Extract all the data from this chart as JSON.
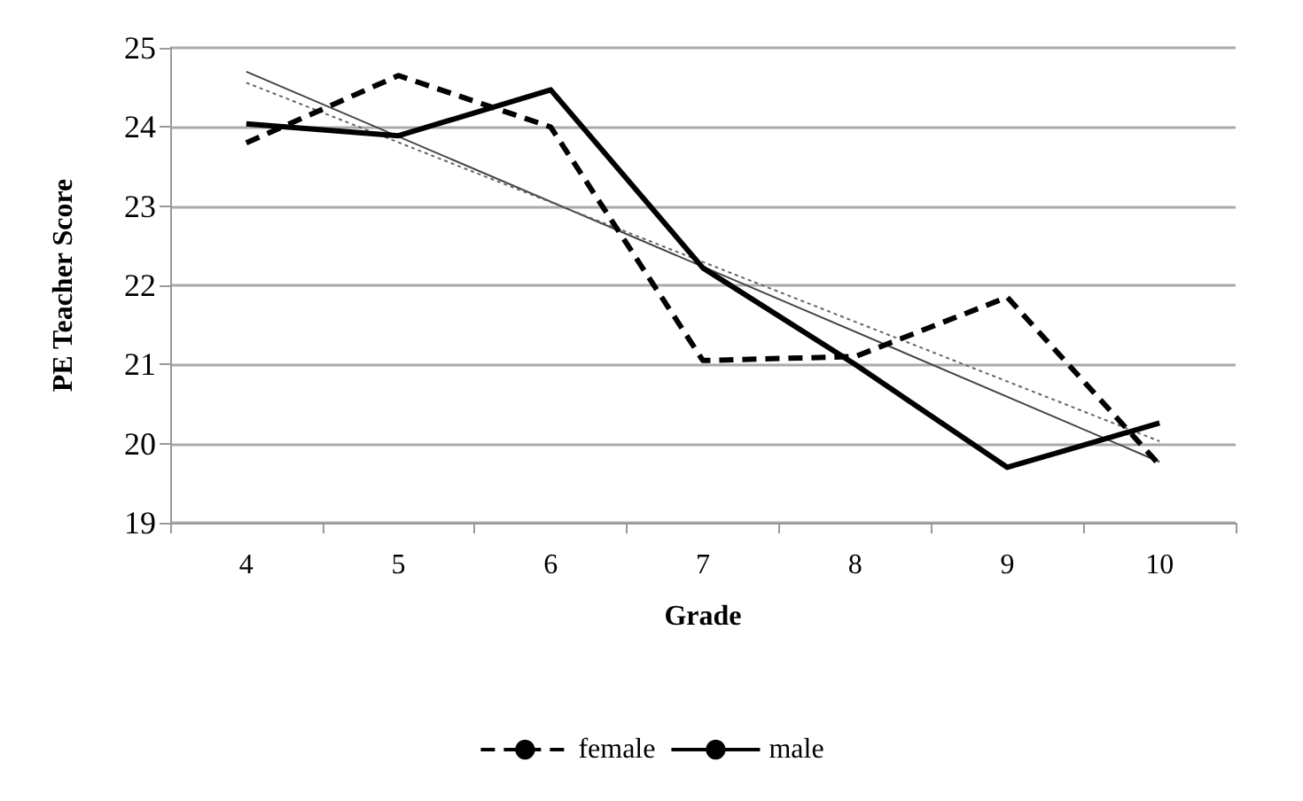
{
  "chart_data": {
    "type": "line",
    "xlabel": "Grade",
    "ylabel": "PE Teacher Score",
    "categories": [
      "4",
      "5",
      "6",
      "7",
      "8",
      "9",
      "10"
    ],
    "series": [
      {
        "name": "female",
        "color": "#000000",
        "line_style": "dashed",
        "values": [
          23.8,
          24.65,
          24.0,
          21.05,
          21.1,
          21.85,
          19.73
        ]
      },
      {
        "name": "male",
        "color": "#000000",
        "line_style": "solid",
        "values": [
          24.04,
          23.89,
          24.47,
          22.22,
          21.0,
          19.7,
          20.26
        ]
      },
      {
        "color": "#444444",
        "line_style": "solid",
        "x": [
          "4",
          "10"
        ],
        "values": [
          24.7,
          19.77
        ]
      },
      {
        "color": "#666666",
        "line_style": "dotted",
        "x": [
          "4",
          "10"
        ],
        "values": [
          24.56,
          20.03
        ]
      }
    ],
    "ylim": [
      19,
      25
    ],
    "yticks": [
      19,
      20,
      21,
      22,
      23,
      24,
      25
    ],
    "grid": "y",
    "legend": "bottom",
    "marker": "none"
  }
}
